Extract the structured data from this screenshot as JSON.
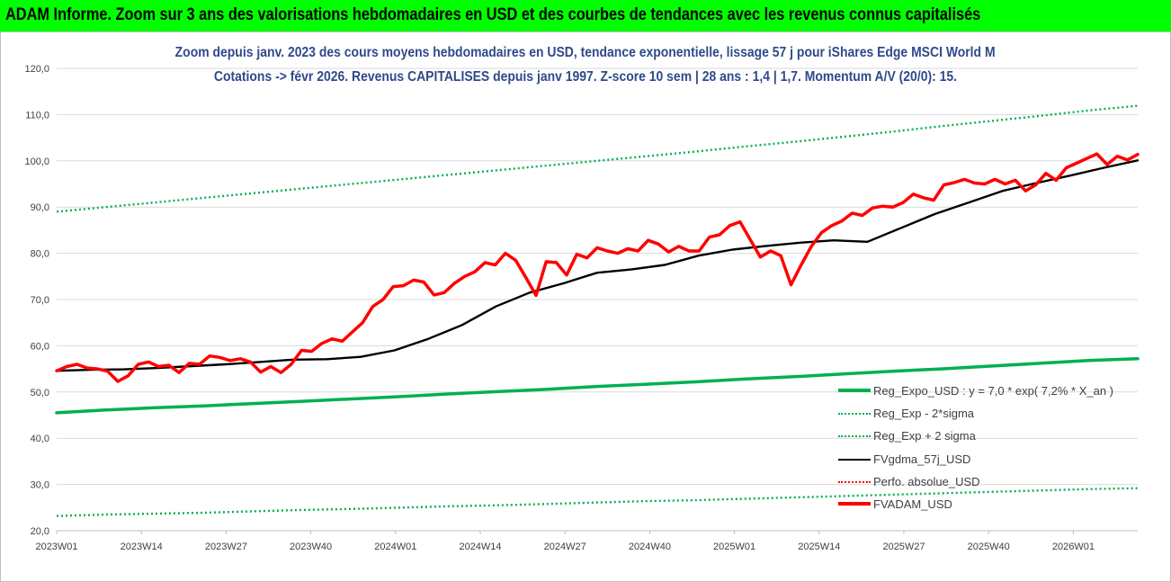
{
  "header": {
    "title": "ADAM Informe. Zoom sur 3 ans des valorisations hebdomadaires en USD et des courbes de tendances avec les revenus connus capitalisés"
  },
  "chart_data": {
    "type": "line",
    "title_line1": "Zoom depuis janv. 2023 des cours moyens hebdomadaires en USD, tendance exponentielle, lissage 57 j pour iShares Edge MSCI World M",
    "title_line2": "Cotations -> févr 2026. Revenus CAPITALISES depuis janv 1997. Z-score 10 sem | 28 ans : 1,4 | 1,7. Momentum A/V (20/0): 15.",
    "xlabel": "",
    "ylabel": "",
    "ylim": [
      20,
      120
    ],
    "yticks": [
      "20,0",
      "30,0",
      "40,0",
      "50,0",
      "60,0",
      "70,0",
      "80,0",
      "90,0",
      "100,0",
      "110,0",
      "120,0"
    ],
    "x_tick_labels": [
      "2023W01",
      "2023W14",
      "2023W27",
      "2023W40",
      "2024W01",
      "2024W14",
      "2024W27",
      "2024W40",
      "2025W01",
      "2025W14",
      "2025W27",
      "2025W40",
      "2026W01"
    ],
    "x_start": "2023W01",
    "x_end": "2026W07",
    "grid": true,
    "legend_position": "bottom-right",
    "series": [
      {
        "name": "Reg_Expo_USD : y = 7,0 * exp( 7,2% *  X_an )",
        "color": "#00b050",
        "style": "solid-thick",
        "values": [
          45.5,
          46.1,
          46.6,
          47.0,
          47.5,
          48.0,
          48.5,
          49.0,
          49.6,
          50.1,
          50.6,
          51.2,
          51.7,
          52.2,
          52.8,
          53.3,
          53.9,
          54.5,
          55.0,
          55.6,
          56.2,
          56.8,
          57.2
        ]
      },
      {
        "name": "Reg_Exp - 2*sigma",
        "color": "#00b050",
        "style": "dotted",
        "values": [
          23.2,
          23.5,
          23.7,
          23.9,
          24.2,
          24.5,
          24.7,
          25.0,
          25.3,
          25.5,
          25.8,
          26.1,
          26.4,
          26.6,
          26.9,
          27.2,
          27.5,
          27.8,
          28.1,
          28.4,
          28.7,
          29.0,
          29.2
        ]
      },
      {
        "name": "Reg_Exp + 2 sigma",
        "color": "#00b050",
        "style": "dotted",
        "values": [
          89.0,
          90.0,
          91.0,
          92.0,
          93.0,
          94.0,
          95.0,
          96.0,
          97.0,
          98.0,
          99.0,
          100.0,
          101.0,
          102.0,
          103.1,
          104.1,
          105.2,
          106.3,
          107.5,
          108.6,
          109.7,
          110.9,
          111.9
        ]
      },
      {
        "name": "FVgdma_57j_USD",
        "color": "#000000",
        "style": "solid",
        "values": [
          54.6,
          54.8,
          54.9,
          55.2,
          55.6,
          56.0,
          56.5,
          57.0,
          57.1,
          57.6,
          59.0,
          61.5,
          64.5,
          68.5,
          71.5,
          73.5,
          75.8,
          76.5,
          77.5,
          79.5,
          80.8,
          81.6,
          82.3,
          82.8,
          82.5,
          85.5,
          88.5,
          91.0,
          93.5,
          95.2,
          96.8,
          98.5,
          100.1
        ]
      },
      {
        "name": "Perfo. absolue_USD",
        "color": "#ff0000",
        "style": "dotted",
        "values": []
      },
      {
        "name": "FVADAM_USD",
        "color": "#ff0000",
        "style": "solid-thick",
        "values": [
          54.6,
          55.5,
          56.0,
          55.2,
          55.0,
          54.5,
          52.3,
          53.5,
          56.0,
          56.5,
          55.5,
          55.8,
          54.2,
          56.2,
          56.0,
          57.8,
          57.5,
          56.8,
          57.2,
          56.5,
          54.3,
          55.5,
          54.2,
          56.0,
          59.0,
          58.8,
          60.5,
          61.5,
          61.0,
          63.0,
          65.0,
          68.5,
          70.0,
          72.8,
          73.0,
          74.2,
          73.8,
          71.0,
          71.5,
          73.5,
          75.0,
          76.0,
          78.0,
          77.5,
          80.0,
          78.5,
          74.8,
          70.9,
          78.2,
          78.0,
          75.3,
          79.8,
          79.0,
          81.2,
          80.5,
          80.0,
          81.0,
          80.5,
          82.8,
          82.0,
          80.3,
          81.5,
          80.5,
          80.5,
          83.5,
          84.0,
          86.0,
          86.8,
          83.0,
          79.2,
          80.5,
          79.5,
          73.2,
          77.5,
          81.5,
          84.5,
          86.0,
          87.0,
          88.7,
          88.2,
          89.8,
          90.2,
          90.0,
          91.0,
          92.8,
          92.0,
          91.5,
          94.8,
          95.3,
          96.0,
          95.2,
          95.0,
          96.0,
          95.0,
          95.8,
          93.5,
          94.8,
          97.3,
          95.8,
          98.5,
          99.5,
          100.5,
          101.5,
          99.2,
          101.0,
          100.2,
          101.4
        ]
      }
    ]
  }
}
